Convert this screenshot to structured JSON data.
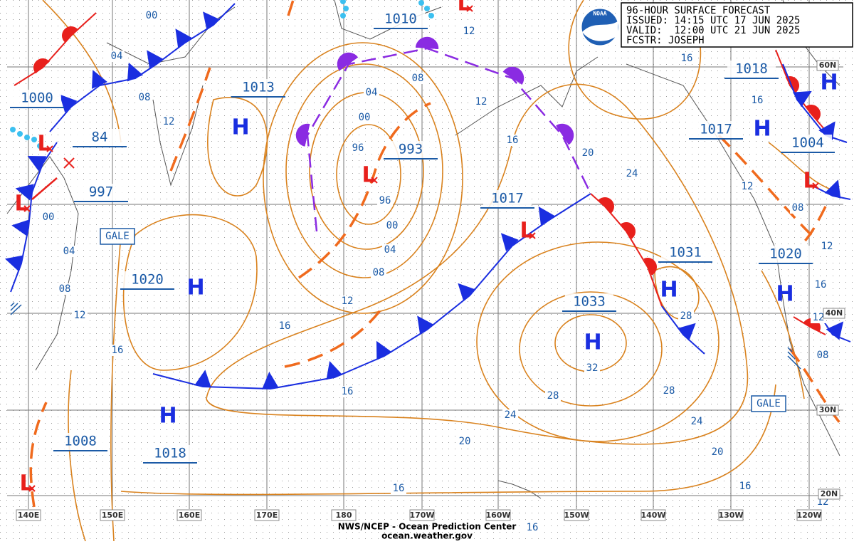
{
  "header": {
    "title": "96-HOUR SURFACE FORECAST",
    "issued": "ISSUED: 14:15 UTC 17 JUN 2025",
    "valid": "VALID:  12:00 UTC 21 JUN 2025",
    "forecaster": "FCSTR: JOSEPH"
  },
  "logo": "NOAA",
  "symbols": {
    "high": "H",
    "low": "L"
  },
  "pressure_centers": [
    "1010",
    "1013",
    "1000",
    "84",
    "997",
    "993",
    "1017",
    "1020",
    "1008",
    "1018",
    "1031",
    "1033",
    "1018",
    "1017",
    "1004",
    "1020"
  ],
  "isobar_labels": [
    "00",
    "04",
    "08",
    "12",
    "00",
    "04",
    "08",
    "12",
    "16",
    "08",
    "04",
    "00",
    "96",
    "96",
    "00",
    "04",
    "08",
    "12",
    "16",
    "16",
    "12",
    "12",
    "16",
    "20",
    "24",
    "28",
    "32",
    "28",
    "28",
    "24",
    "24",
    "20",
    "20",
    "16",
    "16",
    "16",
    "16",
    "12",
    "08",
    "12",
    "16",
    "12",
    "08",
    "12",
    "16"
  ],
  "gale_labels": [
    "GALE",
    "GALE"
  ],
  "longitudes": [
    "140E",
    "150E",
    "160E",
    "170E",
    "180",
    "170W",
    "160W",
    "150W",
    "140W",
    "130W",
    "120W"
  ],
  "latitudes": [
    "60N",
    "40N",
    "30N",
    "20N"
  ],
  "footer": {
    "line1": "NWS/NCEP - Ocean Prediction Center",
    "line2": "ocean.weather.gov"
  }
}
